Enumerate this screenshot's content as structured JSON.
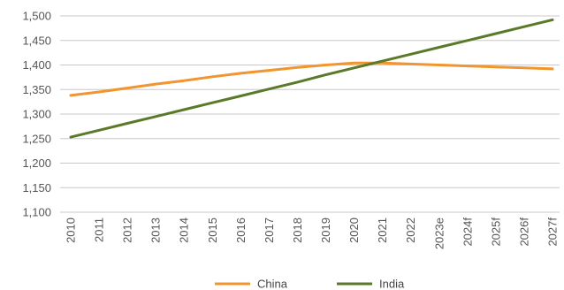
{
  "chart_data": {
    "type": "line",
    "title": "",
    "xlabel": "",
    "ylabel": "",
    "categories": [
      "2010",
      "2011",
      "2012",
      "2013",
      "2014",
      "2015",
      "2016",
      "2017",
      "2018",
      "2019",
      "2020",
      "2021",
      "2022",
      "2023e",
      "2024f",
      "2025f",
      "2026f",
      "2027f"
    ],
    "ylim": [
      1100,
      1500
    ],
    "yticks": [
      1100,
      1150,
      1200,
      1250,
      1300,
      1350,
      1400,
      1450,
      1500
    ],
    "ytick_labels": [
      "1,100",
      "1,150",
      "1,200",
      "1,250",
      "1,300",
      "1,350",
      "1,400",
      "1,450",
      "1,500"
    ],
    "grid": true,
    "legend_position": "bottom",
    "series": [
      {
        "name": "China",
        "color": "#f0952f",
        "values": [
          1338,
          1345,
          1353,
          1361,
          1368,
          1376,
          1383,
          1389,
          1395,
          1400,
          1404,
          1404,
          1402,
          1400,
          1398,
          1396,
          1394,
          1392
        ]
      },
      {
        "name": "India",
        "color": "#5a7a2a",
        "values": [
          1253,
          1267,
          1281,
          1295,
          1309,
          1323,
          1337,
          1351,
          1365,
          1380,
          1394,
          1408,
          1422,
          1436,
          1450,
          1464,
          1478,
          1492
        ]
      }
    ]
  }
}
